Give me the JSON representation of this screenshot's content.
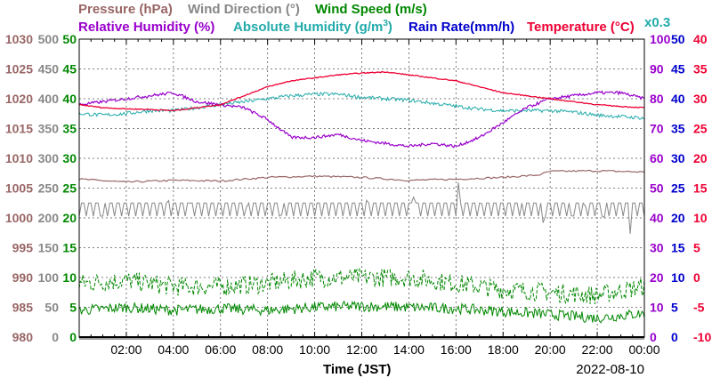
{
  "legend": {
    "row1": [
      {
        "key": "pressure",
        "label": "Pressure (hPa)",
        "color": "#996666"
      },
      {
        "key": "wind_direction",
        "label": "Wind Direction (°)",
        "color": "#888888"
      },
      {
        "key": "wind_speed",
        "label": "Wind Speed (m/s)",
        "color": "#008800"
      }
    ],
    "row2": [
      {
        "key": "relative_humidity",
        "label": "Relative Humidity (%)",
        "color": "#9900cc"
      },
      {
        "key": "absolute_humidity",
        "label": "Absolute Humidity (g/m",
        "sup": "3",
        "tail": ")",
        "color": "#22aaaa"
      },
      {
        "key": "rain_rate",
        "label": "Rain Rate(mm/h)",
        "color": "#0000cc"
      },
      {
        "key": "temperature",
        "label": "Temperature (°C)",
        "color": "#ee0033"
      }
    ],
    "ah_factor": "x0.3"
  },
  "axes": {
    "pressure": {
      "color": "#996666",
      "ticks": [
        "1030",
        "1025",
        "1020",
        "1015",
        "1010",
        "1005",
        "1000",
        "995",
        "990",
        "985",
        "980"
      ]
    },
    "wind_direction": {
      "color": "#888888",
      "ticks": [
        "500",
        "450",
        "400",
        "350",
        "300",
        "250",
        "200",
        "150",
        "100",
        "50",
        "0"
      ]
    },
    "wind_speed": {
      "color": "#008800",
      "ticks": [
        "50",
        "45",
        "40",
        "35",
        "30",
        "25",
        "20",
        "15",
        "10",
        "5",
        "0"
      ]
    },
    "humidity": {
      "color": "#9900cc",
      "ticks": [
        "100",
        "90",
        "80",
        "70",
        "60",
        "50",
        "40",
        "30",
        "20",
        "10",
        "0"
      ]
    },
    "rain_rate": {
      "color": "#0000cc",
      "ticks": [
        "50",
        "45",
        "40",
        "35",
        "30",
        "25",
        "20",
        "15",
        "10",
        "5",
        "0"
      ]
    },
    "temperature": {
      "color": "#ee0033",
      "ticks": [
        "40",
        "35",
        "30",
        "25",
        "20",
        "15",
        "10",
        "5",
        "0",
        "-5",
        "-10"
      ]
    }
  },
  "x_axis": {
    "label": "Time (JST)",
    "date": "2022-08-10",
    "ticks": [
      "02:00",
      "04:00",
      "06:00",
      "08:00",
      "10:00",
      "12:00",
      "14:00",
      "16:00",
      "18:00",
      "20:00",
      "22:00",
      "00:00"
    ]
  },
  "chart_data": {
    "type": "line",
    "title": "",
    "xlabel": "Time (JST)",
    "x_range": [
      "00:00",
      "24:00"
    ],
    "grid": true,
    "series": [
      {
        "name": "Temperature (°C)",
        "unit": "°C",
        "ylim": [
          -10,
          40
        ],
        "times": [
          0,
          1,
          2,
          3,
          4,
          5,
          6,
          7,
          8,
          9,
          10,
          11,
          12,
          13,
          14,
          15,
          16,
          17,
          18,
          19,
          20,
          21,
          22,
          23,
          24
        ],
        "values": [
          29.0,
          28.5,
          28.3,
          28.2,
          28.0,
          28.5,
          29.0,
          30.5,
          32.0,
          33.0,
          33.5,
          34.0,
          34.3,
          34.5,
          34.0,
          33.5,
          33.0,
          32.0,
          31.0,
          30.5,
          30.0,
          29.5,
          29.0,
          28.7,
          28.5
        ]
      },
      {
        "name": "Relative Humidity (%)",
        "unit": "%",
        "ylim": [
          0,
          100
        ],
        "times": [
          0,
          1,
          2,
          3,
          4,
          5,
          6,
          7,
          8,
          9,
          10,
          11,
          12,
          13,
          14,
          15,
          16,
          17,
          18,
          19,
          20,
          21,
          22,
          23,
          24
        ],
        "values": [
          78,
          79,
          80,
          81,
          82,
          79,
          78,
          77,
          73,
          67,
          67,
          68,
          66,
          65,
          64,
          65,
          64,
          67,
          72,
          77,
          80,
          81,
          82,
          82,
          80
        ]
      },
      {
        "name": "Absolute Humidity (g/m3) x0.3",
        "unit": "g/m3 x0.3",
        "ylim": [
          0,
          100
        ],
        "times": [
          0,
          1,
          2,
          3,
          4,
          5,
          6,
          7,
          8,
          9,
          10,
          11,
          12,
          13,
          14,
          15,
          16,
          17,
          18,
          19,
          20,
          21,
          22,
          23,
          24
        ],
        "values": [
          75,
          74.5,
          75,
          76,
          76,
          77,
          78,
          79,
          80,
          81,
          81.5,
          81.5,
          80.5,
          80,
          79.5,
          78.5,
          77.5,
          76.5,
          76,
          76,
          76,
          75.5,
          74.5,
          74,
          73.5
        ]
      },
      {
        "name": "Pressure (hPa)",
        "unit": "hPa",
        "ylim": [
          980,
          1030
        ],
        "times": [
          0,
          2,
          4,
          6,
          8,
          10,
          12,
          14,
          16,
          18,
          19.5,
          20,
          22,
          24
        ],
        "values": [
          1006.5,
          1006,
          1006.3,
          1006.2,
          1006.8,
          1007,
          1006.8,
          1006.3,
          1006.5,
          1006.8,
          1007.2,
          1007.8,
          1007.9,
          1007.7
        ]
      },
      {
        "name": "Wind Direction (°)",
        "unit": "°",
        "ylim": [
          0,
          500
        ],
        "baseline_min": 203,
        "baseline_max": 225,
        "times": [
          0,
          24
        ]
      },
      {
        "name": "Wind Speed (m/s)",
        "unit": "m/s",
        "ylim": [
          0,
          50
        ],
        "times": [
          0,
          2,
          4,
          6,
          8,
          10,
          12,
          14,
          16,
          18,
          20,
          22,
          24
        ],
        "values": [
          4.5,
          5.0,
          4.5,
          4.8,
          4.5,
          5.0,
          5.2,
          5.0,
          4.8,
          4.3,
          3.8,
          3.2,
          4.0
        ]
      },
      {
        "name": "Wind Speed gust (m/s)",
        "unit": "m/s",
        "ylim": [
          0,
          50
        ],
        "times": [
          0,
          2,
          4,
          6,
          8,
          10,
          12,
          14,
          16,
          18,
          20,
          22,
          24
        ],
        "values": [
          9.0,
          9.5,
          8.5,
          8.5,
          9.0,
          10.0,
          10.0,
          10.0,
          9.0,
          8.0,
          7.5,
          7.0,
          8.5
        ]
      },
      {
        "name": "Rain Rate (mm/h)",
        "unit": "mm/h",
        "ylim": [
          0,
          50
        ],
        "times": [
          0,
          24
        ],
        "values": [
          0,
          0
        ]
      }
    ]
  }
}
